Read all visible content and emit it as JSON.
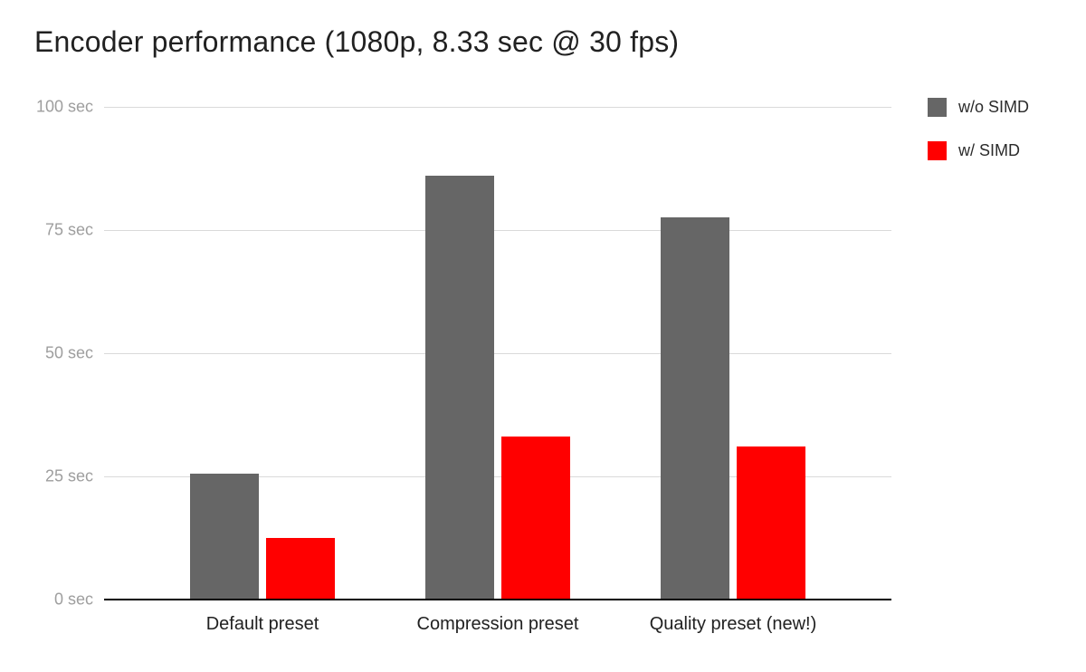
{
  "chart": {
    "title": "Encoder performance (1080p, 8.33 sec @ 30 fps)"
  },
  "chart_data": {
    "type": "bar",
    "title": "Encoder performance (1080p, 8.33 sec @ 30 fps)",
    "categories": [
      "Default preset",
      "Compression preset",
      "Quality preset (new!)"
    ],
    "series": [
      {
        "name": "w/o SIMD",
        "color": "#666666",
        "values": [
          25.5,
          86,
          77.5
        ]
      },
      {
        "name": "w/ SIMD",
        "color": "#ff0000",
        "values": [
          12.5,
          33,
          31
        ]
      }
    ],
    "xlabel": "",
    "ylabel": "",
    "ylim": [
      0,
      100
    ],
    "yticks": [
      0,
      25,
      50,
      75,
      100
    ],
    "ytick_labels": [
      "0 sec",
      "25 sec",
      "50 sec",
      "75 sec",
      "100 sec"
    ],
    "grid": true,
    "legend_position": "top-right",
    "unit": "sec"
  },
  "colors": {
    "gridline": "#dadada",
    "axis_baseline": "#000000",
    "tick_label": "#9e9e9e",
    "category_label": "#212121",
    "background": "#ffffff"
  }
}
